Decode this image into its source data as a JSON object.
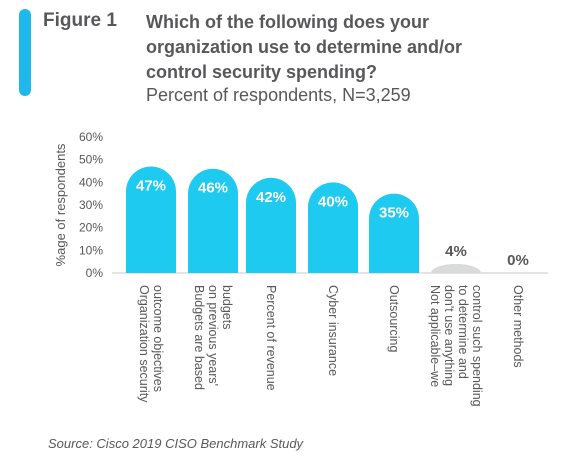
{
  "figure": {
    "label": "Figure 1",
    "title": "Which of the following does your organization use to determine and/or control security spending?",
    "subtitle": "Percent of respondents, N=3,259",
    "source": "Source: Cisco 2019 CISO Benchmark Study",
    "accent_color": "#1fb8ea"
  },
  "chart_data": {
    "type": "bar",
    "ylabel": "%age of respondents",
    "xlabel": "",
    "ylim": [
      0,
      60
    ],
    "yticks": [
      0,
      10,
      20,
      30,
      40,
      50,
      60
    ],
    "ytick_labels": [
      "0%",
      "10%",
      "20%",
      "30%",
      "40%",
      "50%",
      "60%"
    ],
    "grid": false,
    "categories": [
      [
        "Organization security",
        "outcome objectives"
      ],
      [
        "Budgets are based",
        "on previous years'",
        "budgets"
      ],
      [
        "Percent of revenue"
      ],
      [
        "Cyber insurance"
      ],
      [
        "Outsourcing"
      ],
      [
        "Not applicable–we",
        "don't use anything",
        "to determine and",
        "control such spending"
      ],
      [
        "Other methods"
      ]
    ],
    "values": [
      47,
      46,
      42,
      40,
      35,
      4,
      0
    ],
    "data_labels": [
      "47%",
      "46%",
      "42%",
      "40%",
      "35%",
      "4%",
      "0%"
    ],
    "colors": [
      "#1fcaf0",
      "#1fcaf0",
      "#1fcaf0",
      "#1fcaf0",
      "#1fcaf0",
      "#d9dada",
      "#d9dada"
    ]
  }
}
